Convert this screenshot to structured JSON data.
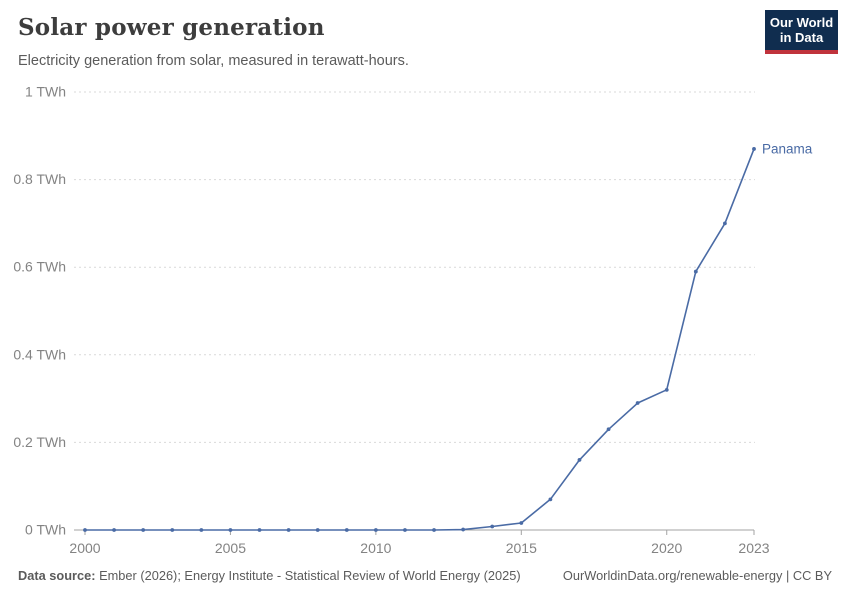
{
  "header": {
    "title": "Solar power generation",
    "subtitle": "Electricity generation from solar, measured in terawatt-hours."
  },
  "logo": {
    "line1": "Our World",
    "line2": "in Data",
    "bg_color": "#102d4f",
    "bar_color": "#c0333c"
  },
  "footer": {
    "data_source_label": "Data source:",
    "data_source_text": " Ember (2026); Energy Institute - Statistical Review of World Energy (2025)",
    "origin_url": "OurWorldinData.org/renewable-energy | CC BY"
  },
  "chart_data": {
    "type": "line",
    "title": "Solar power generation",
    "subtitle": "Electricity generation from solar, measured in terawatt-hours.",
    "unit": "TWh",
    "x": [
      2000,
      2001,
      2002,
      2003,
      2004,
      2005,
      2006,
      2007,
      2008,
      2009,
      2010,
      2011,
      2012,
      2013,
      2014,
      2015,
      2016,
      2017,
      2018,
      2019,
      2020,
      2021,
      2022,
      2023
    ],
    "series": [
      {
        "name": "Panama",
        "color": "#4a6ba5",
        "values": [
          0,
          0,
          0,
          0,
          0,
          0,
          0,
          0,
          0,
          0,
          0,
          0,
          0,
          0.001,
          0.008,
          0.016,
          0.07,
          0.16,
          0.23,
          0.29,
          0.32,
          0.59,
          0.7,
          0.87
        ]
      }
    ],
    "xlim": [
      2000,
      2023
    ],
    "ylim": [
      0,
      1
    ],
    "xticks": [
      {
        "value": 2000,
        "label": "2000"
      },
      {
        "value": 2005,
        "label": "2005"
      },
      {
        "value": 2010,
        "label": "2010"
      },
      {
        "value": 2015,
        "label": "2015"
      },
      {
        "value": 2020,
        "label": "2020"
      },
      {
        "value": 2023,
        "label": "2023"
      }
    ],
    "yticks": [
      {
        "value": 0,
        "label": "0 TWh"
      },
      {
        "value": 0.2,
        "label": "0.2 TWh"
      },
      {
        "value": 0.4,
        "label": "0.4 TWh"
      },
      {
        "value": 0.6,
        "label": "0.6 TWh"
      },
      {
        "value": 0.8,
        "label": "0.8 TWh"
      },
      {
        "value": 1,
        "label": "1 TWh"
      }
    ],
    "grid": "dashed-horizontal",
    "legend": "end-of-line-label",
    "colors": {
      "line": "#4a6ba5",
      "gridline": "#d9d9d9",
      "axis": "#a3a3a3",
      "tick_label": "#838383"
    }
  }
}
